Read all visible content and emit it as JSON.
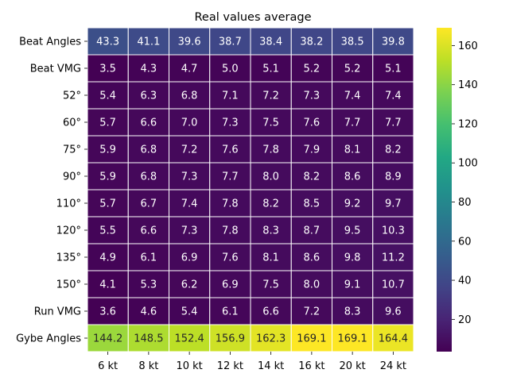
{
  "chart_data": {
    "type": "heatmap",
    "title": "Real values average",
    "xlabel": "",
    "ylabel": "",
    "x_categories": [
      "6 kt",
      "8 kt",
      "10 kt",
      "12 kt",
      "14 kt",
      "16 kt",
      "20 kt",
      "24 kt"
    ],
    "y_categories": [
      "Beat Angles",
      "Beat VMG",
      "52°",
      "60°",
      "75°",
      "90°",
      "110°",
      "120°",
      "135°",
      "150°",
      "Run VMG",
      "Gybe Angles"
    ],
    "values": [
      [
        43.3,
        41.1,
        39.6,
        38.7,
        38.4,
        38.2,
        38.5,
        39.8
      ],
      [
        3.5,
        4.3,
        4.7,
        5.0,
        5.1,
        5.2,
        5.2,
        5.1
      ],
      [
        5.4,
        6.3,
        6.8,
        7.1,
        7.2,
        7.3,
        7.4,
        7.4
      ],
      [
        5.7,
        6.6,
        7.0,
        7.3,
        7.5,
        7.6,
        7.7,
        7.7
      ],
      [
        5.9,
        6.8,
        7.2,
        7.6,
        7.8,
        7.9,
        8.1,
        8.2
      ],
      [
        5.9,
        6.8,
        7.3,
        7.7,
        8.0,
        8.2,
        8.6,
        8.9
      ],
      [
        5.7,
        6.7,
        7.4,
        7.8,
        8.2,
        8.5,
        9.2,
        9.7
      ],
      [
        5.5,
        6.6,
        7.3,
        7.8,
        8.3,
        8.7,
        9.5,
        10.3
      ],
      [
        4.9,
        6.1,
        6.9,
        7.6,
        8.1,
        8.6,
        9.8,
        11.2
      ],
      [
        4.1,
        5.3,
        6.2,
        6.9,
        7.5,
        8.0,
        9.1,
        10.7
      ],
      [
        3.6,
        4.6,
        5.4,
        6.1,
        6.6,
        7.2,
        8.3,
        9.6
      ],
      [
        144.2,
        148.5,
        152.4,
        156.9,
        162.3,
        169.1,
        169.1,
        164.4
      ]
    ],
    "colormap": "viridis",
    "value_range": [
      3.5,
      169.1
    ],
    "colorbar_ticks": [
      20,
      40,
      60,
      80,
      100,
      120,
      140,
      160
    ],
    "cell_labels": true,
    "grid_line_color": "#ffffff",
    "legend": "colorbar-right"
  }
}
